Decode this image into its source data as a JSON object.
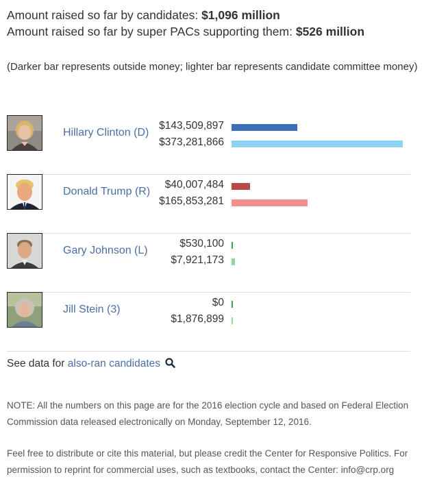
{
  "summary": {
    "candidates_label": "Amount raised so far by candidates:",
    "candidates_value": "$1,096 million",
    "pacs_label": "Amount raised so far by super PACs supporting them:",
    "pacs_value": "$526 million"
  },
  "legend_note": "(Darker bar represents outside money; lighter bar represents candidate committee money)",
  "scale_max_amount": 373281866,
  "candidates": [
    {
      "name": "Hillary Clinton (D)",
      "outside_amount": "$143,509,897",
      "outside_value": 143509897,
      "committee_amount": "$373,281,866",
      "committee_value": 373281866,
      "outside_color": "#3d6fb6",
      "committee_color": "#8fd3f4",
      "avatar": "hillary-clinton-avatar"
    },
    {
      "name": "Donald Trump (R)",
      "outside_amount": "$40,007,484",
      "outside_value": 40007484,
      "committee_amount": "$165,853,281",
      "committee_value": 165853281,
      "outside_color": "#b84a45",
      "committee_color": "#f48f8f",
      "avatar": "donald-trump-avatar"
    },
    {
      "name": "Gary Johnson (L)",
      "outside_amount": "$530,100",
      "outside_value": 530100,
      "committee_amount": "$7,921,173",
      "committee_value": 7921173,
      "outside_color": "#3aa35a",
      "committee_color": "#8fd99f",
      "avatar": "gary-johnson-avatar"
    },
    {
      "name": "Jill Stein (3)",
      "outside_amount": "$0",
      "outside_value": 0,
      "committee_amount": "$1,876,899",
      "committee_value": 1876899,
      "outside_color": "#3aa35a",
      "committee_color": "#8fd99f",
      "avatar": "jill-stein-avatar"
    }
  ],
  "also_ran": {
    "prefix": "See data for",
    "link": "also-ran candidates",
    "icon": "search-icon"
  },
  "notes": {
    "note1": "NOTE: All the numbers on this page are for the 2016 election cycle and based on Federal Election Commission data released electronically on Monday, September 12, 2016.",
    "note2": "Feel free to distribute or cite this material, but please credit the Center for Responsive Politics. For permission to reprint for commercial uses, such as textbooks, contact the Center: info@crp.org"
  }
}
